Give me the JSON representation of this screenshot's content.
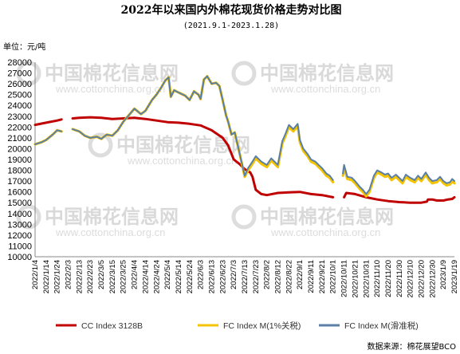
{
  "chart_data": {
    "type": "line",
    "title": "2022年以来国内外棉花现货价格走势对比图",
    "subtitle": "(2021.9.1-2023.1.28)",
    "ylabel": "单位：元/吨",
    "ylim": [
      10000,
      28000
    ],
    "yticks": [
      10000,
      11000,
      12000,
      13000,
      14000,
      15000,
      16000,
      17000,
      18000,
      19000,
      20000,
      21000,
      22000,
      23000,
      24000,
      25000,
      26000,
      27000,
      28000
    ],
    "x_tick_labels": [
      "2022/1/4",
      "2022/1/14",
      "2022/1/24",
      "2022/2/3",
      "2022/2/13",
      "2022/2/23",
      "2022/3/5",
      "2022/3/15",
      "2022/3/25",
      "2022/4/4",
      "2022/4/14",
      "2022/4/24",
      "2022/5/4",
      "2022/5/14",
      "2022/5/24",
      "2022/6/3",
      "2022/6/13",
      "2022/6/23",
      "2022/7/3",
      "2022/7/13",
      "2022/7/23",
      "2022/8/2",
      "2022/8/12",
      "2022/8/22",
      "2022/9/1",
      "2022/9/11",
      "2022/9/21",
      "2022/10/1",
      "2022/10/11",
      "2022/10/21",
      "2022/10/31",
      "2022/11/10",
      "2022/11/20",
      "2022/11/30",
      "2022/12/10",
      "2022/12/20",
      "2022/12/30",
      "2023/1/9",
      "2023/1/19"
    ],
    "x_range": [
      "2022-01-04",
      "2023-01-19"
    ],
    "grid": false,
    "legend_position": "bottom",
    "source": "数据来源：棉花展望BCO",
    "watermark": {
      "main": "中国棉花信息网",
      "sub": "www.cottonchina.org.cn"
    },
    "series": [
      {
        "name": "CC Index 3128B",
        "color": "#c00000",
        "width": 3,
        "points": [
          [
            "2022-01-04",
            22200
          ],
          [
            "2022-01-14",
            22400
          ],
          [
            "2022-01-24",
            22600
          ],
          [
            "2022-01-28",
            22700
          ],
          [
            "2022-02-07",
            22800
          ],
          [
            "2022-02-13",
            22850
          ],
          [
            "2022-02-23",
            22900
          ],
          [
            "2022-03-05",
            22850
          ],
          [
            "2022-03-15",
            22750
          ],
          [
            "2022-03-25",
            22800
          ],
          [
            "2022-04-04",
            22850
          ],
          [
            "2022-04-14",
            22750
          ],
          [
            "2022-04-24",
            22600
          ],
          [
            "2022-05-04",
            22450
          ],
          [
            "2022-05-14",
            22400
          ],
          [
            "2022-05-24",
            22300
          ],
          [
            "2022-06-03",
            22150
          ],
          [
            "2022-06-13",
            21700
          ],
          [
            "2022-06-23",
            21000
          ],
          [
            "2022-06-28",
            20300
          ],
          [
            "2022-07-03",
            19000
          ],
          [
            "2022-07-08",
            18600
          ],
          [
            "2022-07-13",
            18100
          ],
          [
            "2022-07-18",
            17800
          ],
          [
            "2022-07-20",
            17400
          ],
          [
            "2022-07-23",
            16200
          ],
          [
            "2022-07-28",
            15800
          ],
          [
            "2022-08-02",
            15700
          ],
          [
            "2022-08-12",
            15900
          ],
          [
            "2022-08-22",
            15950
          ],
          [
            "2022-09-01",
            16000
          ],
          [
            "2022-09-11",
            15800
          ],
          [
            "2022-09-21",
            15700
          ],
          [
            "2022-10-01",
            15500
          ],
          [
            "2022-10-11",
            15500
          ],
          [
            "2022-10-13",
            15900
          ],
          [
            "2022-10-21",
            15800
          ],
          [
            "2022-10-31",
            15500
          ],
          [
            "2022-11-10",
            15300
          ],
          [
            "2022-11-20",
            15150
          ],
          [
            "2022-11-30",
            15050
          ],
          [
            "2022-12-10",
            15000
          ],
          [
            "2022-12-20",
            15000
          ],
          [
            "2022-12-25",
            15100
          ],
          [
            "2022-12-26",
            15300
          ],
          [
            "2022-12-30",
            15300
          ],
          [
            "2023-01-03",
            15200
          ],
          [
            "2023-01-09",
            15200
          ],
          [
            "2023-01-13",
            15300
          ],
          [
            "2023-01-17",
            15350
          ],
          [
            "2023-01-19",
            15500
          ]
        ]
      },
      {
        "name": "FC Index M(1%关税)",
        "color": "#f5c400",
        "width": 3.2,
        "points": [
          [
            "2022-01-04",
            20400
          ],
          [
            "2022-01-10",
            20600
          ],
          [
            "2022-01-14",
            20800
          ],
          [
            "2022-01-20",
            21300
          ],
          [
            "2022-01-24",
            21700
          ],
          [
            "2022-01-28",
            21600
          ],
          [
            "2022-02-07",
            21800
          ],
          [
            "2022-02-13",
            21600
          ],
          [
            "2022-02-18",
            21200
          ],
          [
            "2022-02-23",
            21000
          ],
          [
            "2022-03-01",
            21100
          ],
          [
            "2022-03-05",
            20900
          ],
          [
            "2022-03-10",
            21300
          ],
          [
            "2022-03-15",
            21200
          ],
          [
            "2022-03-20",
            21700
          ],
          [
            "2022-03-25",
            22500
          ],
          [
            "2022-03-30",
            23100
          ],
          [
            "2022-04-04",
            23700
          ],
          [
            "2022-04-10",
            23200
          ],
          [
            "2022-04-14",
            23500
          ],
          [
            "2022-04-20",
            24500
          ],
          [
            "2022-04-24",
            25000
          ],
          [
            "2022-04-28",
            25600
          ],
          [
            "2022-05-02",
            26300
          ],
          [
            "2022-05-05",
            26600
          ],
          [
            "2022-05-07",
            24800
          ],
          [
            "2022-05-10",
            25400
          ],
          [
            "2022-05-14",
            25200
          ],
          [
            "2022-05-20",
            24900
          ],
          [
            "2022-05-24",
            24500
          ],
          [
            "2022-05-28",
            25300
          ],
          [
            "2022-06-01",
            25000
          ],
          [
            "2022-06-03",
            24600
          ],
          [
            "2022-06-06",
            26400
          ],
          [
            "2022-06-09",
            26700
          ],
          [
            "2022-06-13",
            26000
          ],
          [
            "2022-06-17",
            26100
          ],
          [
            "2022-06-20",
            25800
          ],
          [
            "2022-06-23",
            24500
          ],
          [
            "2022-06-26",
            23100
          ],
          [
            "2022-06-28",
            22500
          ],
          [
            "2022-07-01",
            21300
          ],
          [
            "2022-07-04",
            21500
          ],
          [
            "2022-07-08",
            19700
          ],
          [
            "2022-07-13",
            17400
          ],
          [
            "2022-07-16",
            18000
          ],
          [
            "2022-07-20",
            18600
          ],
          [
            "2022-07-23",
            19100
          ],
          [
            "2022-07-28",
            18600
          ],
          [
            "2022-08-02",
            18300
          ],
          [
            "2022-08-06",
            18900
          ],
          [
            "2022-08-09",
            18600
          ],
          [
            "2022-08-12",
            18300
          ],
          [
            "2022-08-16",
            20500
          ],
          [
            "2022-08-19",
            21200
          ],
          [
            "2022-08-22",
            22000
          ],
          [
            "2022-08-26",
            21600
          ],
          [
            "2022-08-30",
            22100
          ],
          [
            "2022-09-01",
            20600
          ],
          [
            "2022-09-04",
            19800
          ],
          [
            "2022-09-08",
            19300
          ],
          [
            "2022-09-11",
            18800
          ],
          [
            "2022-09-15",
            18600
          ],
          [
            "2022-09-18",
            18300
          ],
          [
            "2022-09-21",
            18000
          ],
          [
            "2022-09-25",
            17500
          ],
          [
            "2022-09-28",
            17300
          ],
          [
            "2022-10-01",
            16900
          ],
          [
            "2022-10-10",
            17500
          ],
          [
            "2022-10-11",
            18300
          ],
          [
            "2022-10-14",
            17200
          ],
          [
            "2022-10-18",
            17100
          ],
          [
            "2022-10-21",
            16800
          ],
          [
            "2022-10-25",
            16300
          ],
          [
            "2022-10-28",
            16000
          ],
          [
            "2022-10-31",
            15600
          ],
          [
            "2022-11-03",
            16000
          ],
          [
            "2022-11-07",
            17300
          ],
          [
            "2022-11-10",
            17800
          ],
          [
            "2022-11-14",
            17600
          ],
          [
            "2022-11-17",
            17400
          ],
          [
            "2022-11-20",
            17500
          ],
          [
            "2022-11-23",
            17100
          ],
          [
            "2022-11-27",
            17400
          ],
          [
            "2022-11-30",
            17100
          ],
          [
            "2022-12-03",
            16800
          ],
          [
            "2022-12-06",
            17400
          ],
          [
            "2022-12-10",
            17100
          ],
          [
            "2022-12-14",
            16900
          ],
          [
            "2022-12-17",
            17300
          ],
          [
            "2022-12-20",
            17000
          ],
          [
            "2022-12-24",
            17600
          ],
          [
            "2022-12-27",
            17100
          ],
          [
            "2022-12-30",
            16800
          ],
          [
            "2023-01-03",
            16900
          ],
          [
            "2023-01-06",
            17200
          ],
          [
            "2023-01-09",
            16800
          ],
          [
            "2023-01-12",
            16600
          ],
          [
            "2023-01-15",
            16700
          ],
          [
            "2023-01-17",
            17000
          ],
          [
            "2023-01-19",
            16800
          ]
        ]
      },
      {
        "name": "FC Index M(滑准税)",
        "color": "#5b7fa6",
        "width": 2,
        "points": [
          [
            "2022-01-04",
            20400
          ],
          [
            "2022-01-10",
            20600
          ],
          [
            "2022-01-14",
            20800
          ],
          [
            "2022-01-20",
            21300
          ],
          [
            "2022-01-24",
            21700
          ],
          [
            "2022-01-28",
            21600
          ],
          [
            "2022-02-07",
            21800
          ],
          [
            "2022-02-13",
            21600
          ],
          [
            "2022-02-18",
            21200
          ],
          [
            "2022-02-23",
            21000
          ],
          [
            "2022-03-01",
            21100
          ],
          [
            "2022-03-05",
            20900
          ],
          [
            "2022-03-10",
            21300
          ],
          [
            "2022-03-15",
            21200
          ],
          [
            "2022-03-20",
            21700
          ],
          [
            "2022-03-25",
            22500
          ],
          [
            "2022-03-30",
            23100
          ],
          [
            "2022-04-04",
            23700
          ],
          [
            "2022-04-10",
            23200
          ],
          [
            "2022-04-14",
            23500
          ],
          [
            "2022-04-20",
            24500
          ],
          [
            "2022-04-24",
            25000
          ],
          [
            "2022-04-28",
            25600
          ],
          [
            "2022-05-02",
            26300
          ],
          [
            "2022-05-05",
            26600
          ],
          [
            "2022-05-07",
            24800
          ],
          [
            "2022-05-10",
            25400
          ],
          [
            "2022-05-14",
            25200
          ],
          [
            "2022-05-20",
            24900
          ],
          [
            "2022-05-24",
            24500
          ],
          [
            "2022-05-28",
            25300
          ],
          [
            "2022-06-01",
            25000
          ],
          [
            "2022-06-03",
            24600
          ],
          [
            "2022-06-06",
            26400
          ],
          [
            "2022-06-09",
            26700
          ],
          [
            "2022-06-13",
            26000
          ],
          [
            "2022-06-17",
            26100
          ],
          [
            "2022-06-20",
            25800
          ],
          [
            "2022-06-23",
            24500
          ],
          [
            "2022-06-26",
            23100
          ],
          [
            "2022-06-28",
            22500
          ],
          [
            "2022-07-01",
            21300
          ],
          [
            "2022-07-04",
            21500
          ],
          [
            "2022-07-08",
            19700
          ],
          [
            "2022-07-13",
            17500
          ],
          [
            "2022-07-16",
            18200
          ],
          [
            "2022-07-20",
            18800
          ],
          [
            "2022-07-23",
            19300
          ],
          [
            "2022-07-28",
            18800
          ],
          [
            "2022-08-02",
            18500
          ],
          [
            "2022-08-06",
            19100
          ],
          [
            "2022-08-09",
            18800
          ],
          [
            "2022-08-12",
            18500
          ],
          [
            "2022-08-16",
            20700
          ],
          [
            "2022-08-19",
            21400
          ],
          [
            "2022-08-22",
            22200
          ],
          [
            "2022-08-26",
            21800
          ],
          [
            "2022-08-30",
            22300
          ],
          [
            "2022-09-01",
            20800
          ],
          [
            "2022-09-04",
            20000
          ],
          [
            "2022-09-08",
            19500
          ],
          [
            "2022-09-11",
            19000
          ],
          [
            "2022-09-15",
            18800
          ],
          [
            "2022-09-18",
            18500
          ],
          [
            "2022-09-21",
            18200
          ],
          [
            "2022-09-25",
            17700
          ],
          [
            "2022-09-28",
            17500
          ],
          [
            "2022-10-01",
            17100
          ],
          [
            "2022-10-10",
            17700
          ],
          [
            "2022-10-11",
            18500
          ],
          [
            "2022-10-14",
            17400
          ],
          [
            "2022-10-18",
            17300
          ],
          [
            "2022-10-21",
            17000
          ],
          [
            "2022-10-25",
            16500
          ],
          [
            "2022-10-28",
            16200
          ],
          [
            "2022-10-31",
            15800
          ],
          [
            "2022-11-03",
            16200
          ],
          [
            "2022-11-07",
            17500
          ],
          [
            "2022-11-10",
            18000
          ],
          [
            "2022-11-14",
            17800
          ],
          [
            "2022-11-17",
            17600
          ],
          [
            "2022-11-20",
            17700
          ],
          [
            "2022-11-23",
            17300
          ],
          [
            "2022-11-27",
            17600
          ],
          [
            "2022-11-30",
            17300
          ],
          [
            "2022-12-03",
            17000
          ],
          [
            "2022-12-06",
            17600
          ],
          [
            "2022-12-10",
            17300
          ],
          [
            "2022-12-14",
            17100
          ],
          [
            "2022-12-17",
            17500
          ],
          [
            "2022-12-20",
            17200
          ],
          [
            "2022-12-24",
            17800
          ],
          [
            "2022-12-27",
            17300
          ],
          [
            "2022-12-30",
            17000
          ],
          [
            "2023-01-03",
            17100
          ],
          [
            "2023-01-06",
            17400
          ],
          [
            "2023-01-09",
            17000
          ],
          [
            "2023-01-12",
            16800
          ],
          [
            "2023-01-15",
            16900
          ],
          [
            "2023-01-17",
            17200
          ],
          [
            "2023-01-19",
            17000
          ]
        ]
      }
    ],
    "gaps": [
      [
        "2022-01-28",
        "2022-02-07"
      ],
      [
        "2022-10-01",
        "2022-10-10"
      ]
    ]
  }
}
